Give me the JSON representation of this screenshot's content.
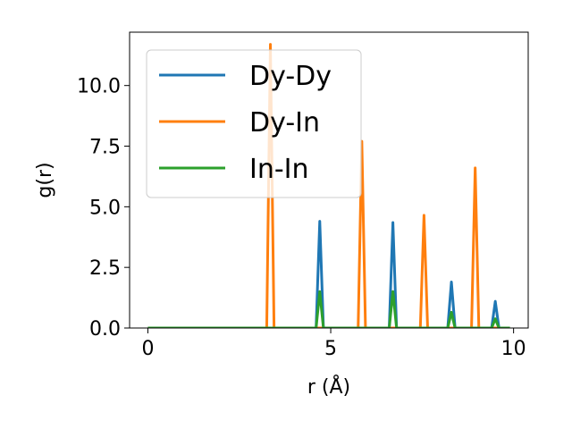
{
  "chart_data": {
    "type": "line",
    "title": "",
    "xlabel": "r (Å)",
    "ylabel": "g(r)",
    "xlim": [
      -0.5,
      10.4
    ],
    "ylim": [
      0,
      12.2
    ],
    "xticks": [
      0,
      5,
      10
    ],
    "yticks": [
      0.0,
      2.5,
      5.0,
      7.5,
      10.0
    ],
    "xtick_labels": [
      "0",
      "5",
      "10"
    ],
    "ytick_labels": [
      "0.0",
      "2.5",
      "5.0",
      "7.5",
      "10.0"
    ],
    "grid": false,
    "legend_position": "top-left",
    "series": [
      {
        "name": "Dy-Dy",
        "color": "#1f77b4",
        "x": [
          0,
          4.6,
          4.7,
          4.8,
          6.6,
          6.7,
          6.8,
          8.2,
          8.3,
          8.4,
          9.4,
          9.5,
          9.6,
          9.9
        ],
        "y": [
          0,
          0,
          4.4,
          0,
          0,
          4.35,
          0,
          0,
          1.9,
          0,
          0,
          1.1,
          0,
          0
        ]
      },
      {
        "name": "Dy-In",
        "color": "#ff7f0e",
        "x": [
          0,
          3.25,
          3.35,
          3.45,
          5.75,
          5.85,
          5.95,
          7.45,
          7.55,
          7.65,
          8.85,
          8.95,
          9.05,
          9.9
        ],
        "y": [
          0,
          0,
          11.7,
          0,
          0,
          7.7,
          0,
          0,
          4.65,
          0,
          0,
          6.6,
          0,
          0
        ]
      },
      {
        "name": "In-In",
        "color": "#2ca02c",
        "x": [
          0,
          4.6,
          4.7,
          4.8,
          6.6,
          6.7,
          6.8,
          8.2,
          8.3,
          8.4,
          9.4,
          9.5,
          9.6,
          9.9
        ],
        "y": [
          0,
          0,
          1.5,
          0,
          0,
          1.5,
          0,
          0,
          0.65,
          0,
          0,
          0.38,
          0,
          0
        ]
      }
    ]
  }
}
